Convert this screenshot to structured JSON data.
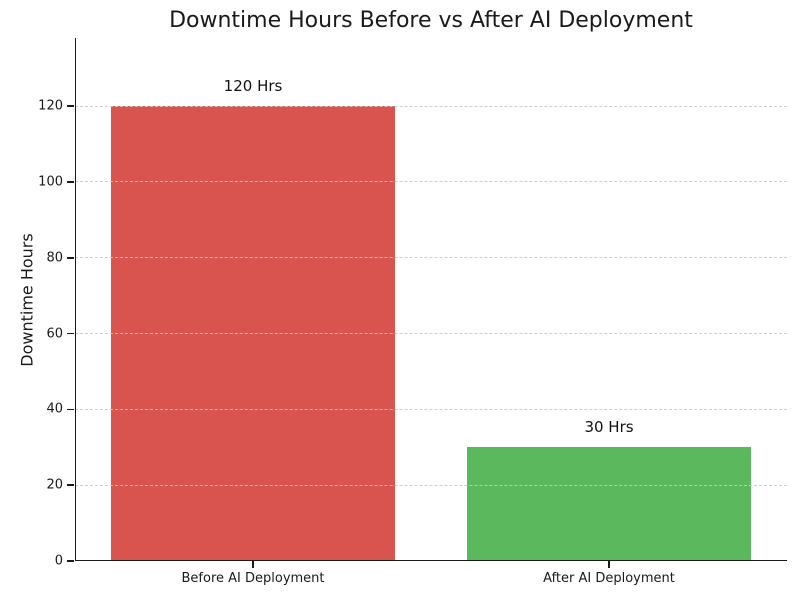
{
  "chart_data": {
    "type": "bar",
    "title": "Downtime Hours Before vs After AI Deployment",
    "ylabel": "Downtime Hours",
    "xlabel": "",
    "categories": [
      "Before AI Deployment",
      "After AI Deployment"
    ],
    "values": [
      120,
      30
    ],
    "value_labels": [
      "120 Hrs",
      "30 Hrs"
    ],
    "bar_colors": [
      "#d9534f",
      "#5cb85c"
    ],
    "yticks": [
      0,
      20,
      40,
      60,
      80,
      100,
      120
    ],
    "ylim": [
      0,
      138
    ],
    "grid": "horizontal-dashed-over-bars",
    "grid_color": "#c9c9c9",
    "axis_color": "#1a1a1a",
    "text_color": "#1a1a1a",
    "background": "#ffffff",
    "legend_position": "none",
    "spines": [
      "left",
      "bottom"
    ]
  }
}
